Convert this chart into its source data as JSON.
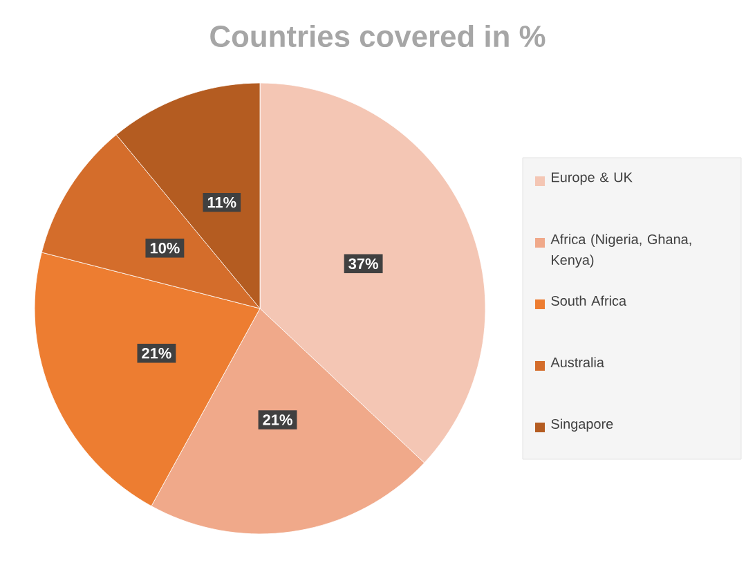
{
  "chart_data": {
    "type": "pie",
    "title": "Countries covered in %",
    "categories": [
      "Europe & UK",
      "Africa (Nigeria, Ghana, Kenya)",
      "South Africa",
      "Australia",
      "Singapore"
    ],
    "values": [
      37,
      21,
      21,
      10,
      11
    ],
    "value_labels": [
      "37%",
      "21%",
      "21%",
      "10%",
      "11%"
    ],
    "colors": [
      "#f4c6b4",
      "#f0a98a",
      "#ed7d31",
      "#d46d2b",
      "#b45c21"
    ],
    "legend": "right"
  }
}
